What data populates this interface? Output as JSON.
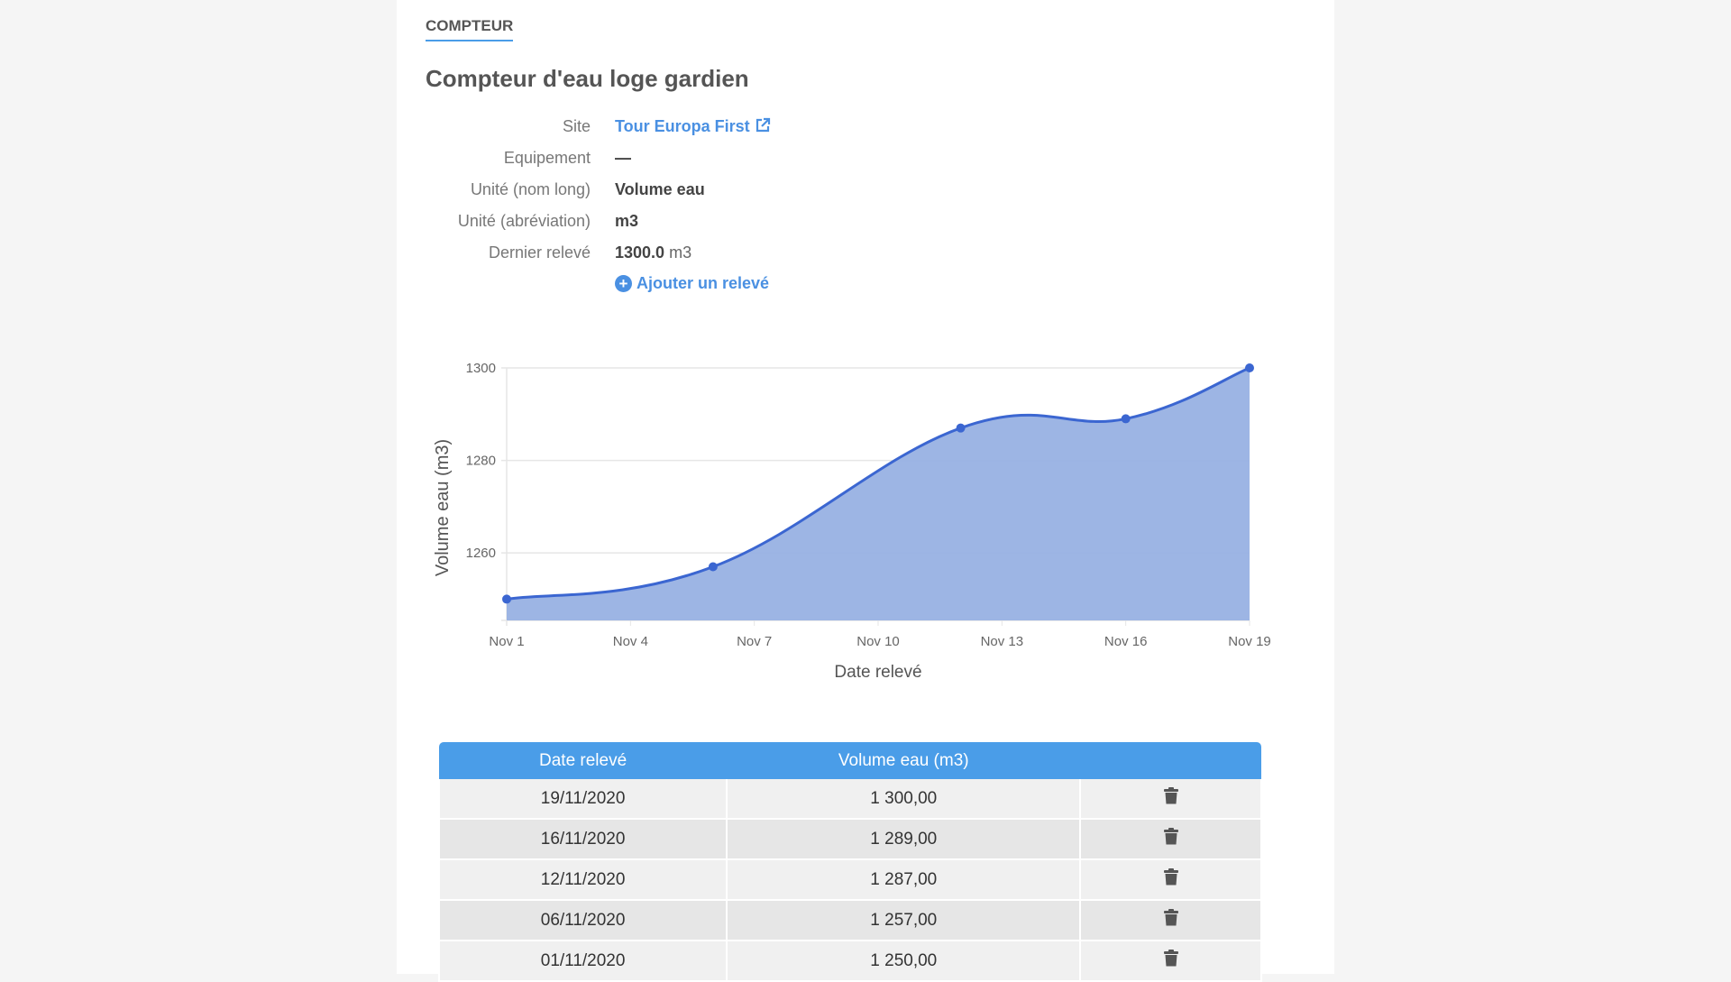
{
  "tab_label": "COMPTEUR",
  "title": "Compteur d'eau loge gardien",
  "details": {
    "site_label": "Site",
    "site_value": "Tour Europa First",
    "equipement_label": "Equipement",
    "equipement_value": "—",
    "unite_long_label": "Unité (nom long)",
    "unite_long_value": "Volume eau",
    "unite_abbr_label": "Unité (abréviation)",
    "unite_abbr_value": "m3",
    "dernier_label": "Dernier relevé",
    "dernier_value": "1300.0",
    "dernier_unit": "m3",
    "add_label": "Ajouter un relevé"
  },
  "colors": {
    "accent": "#4a9de8",
    "line": "#3b66d1",
    "fill": "#98b1e3"
  },
  "chart_data": {
    "type": "area",
    "xlabel": "Date relevé",
    "ylabel": "Volume eau (m3)",
    "x": [
      1,
      6,
      12,
      16,
      19
    ],
    "y": [
      1250,
      1257,
      1287,
      1289,
      1300
    ],
    "xticks": [
      1,
      4,
      7,
      10,
      13,
      16,
      19
    ],
    "xtick_labels": [
      "Nov 1",
      "Nov 4",
      "Nov 7",
      "Nov 10",
      "Nov 13",
      "Nov 16",
      "Nov 19"
    ],
    "yticks": [
      1260,
      1280,
      1300
    ],
    "xlim": [
      1,
      19
    ],
    "ylim": [
      1245.4,
      1300
    ],
    "grid": true
  },
  "table": {
    "headers": [
      "Date relevé",
      "Volume eau (m3)",
      ""
    ],
    "rows": [
      {
        "date": "19/11/2020",
        "value": "1 300,00"
      },
      {
        "date": "16/11/2020",
        "value": "1 289,00"
      },
      {
        "date": "12/11/2020",
        "value": "1 287,00"
      },
      {
        "date": "06/11/2020",
        "value": "1 257,00"
      },
      {
        "date": "01/11/2020",
        "value": "1 250,00"
      }
    ]
  }
}
